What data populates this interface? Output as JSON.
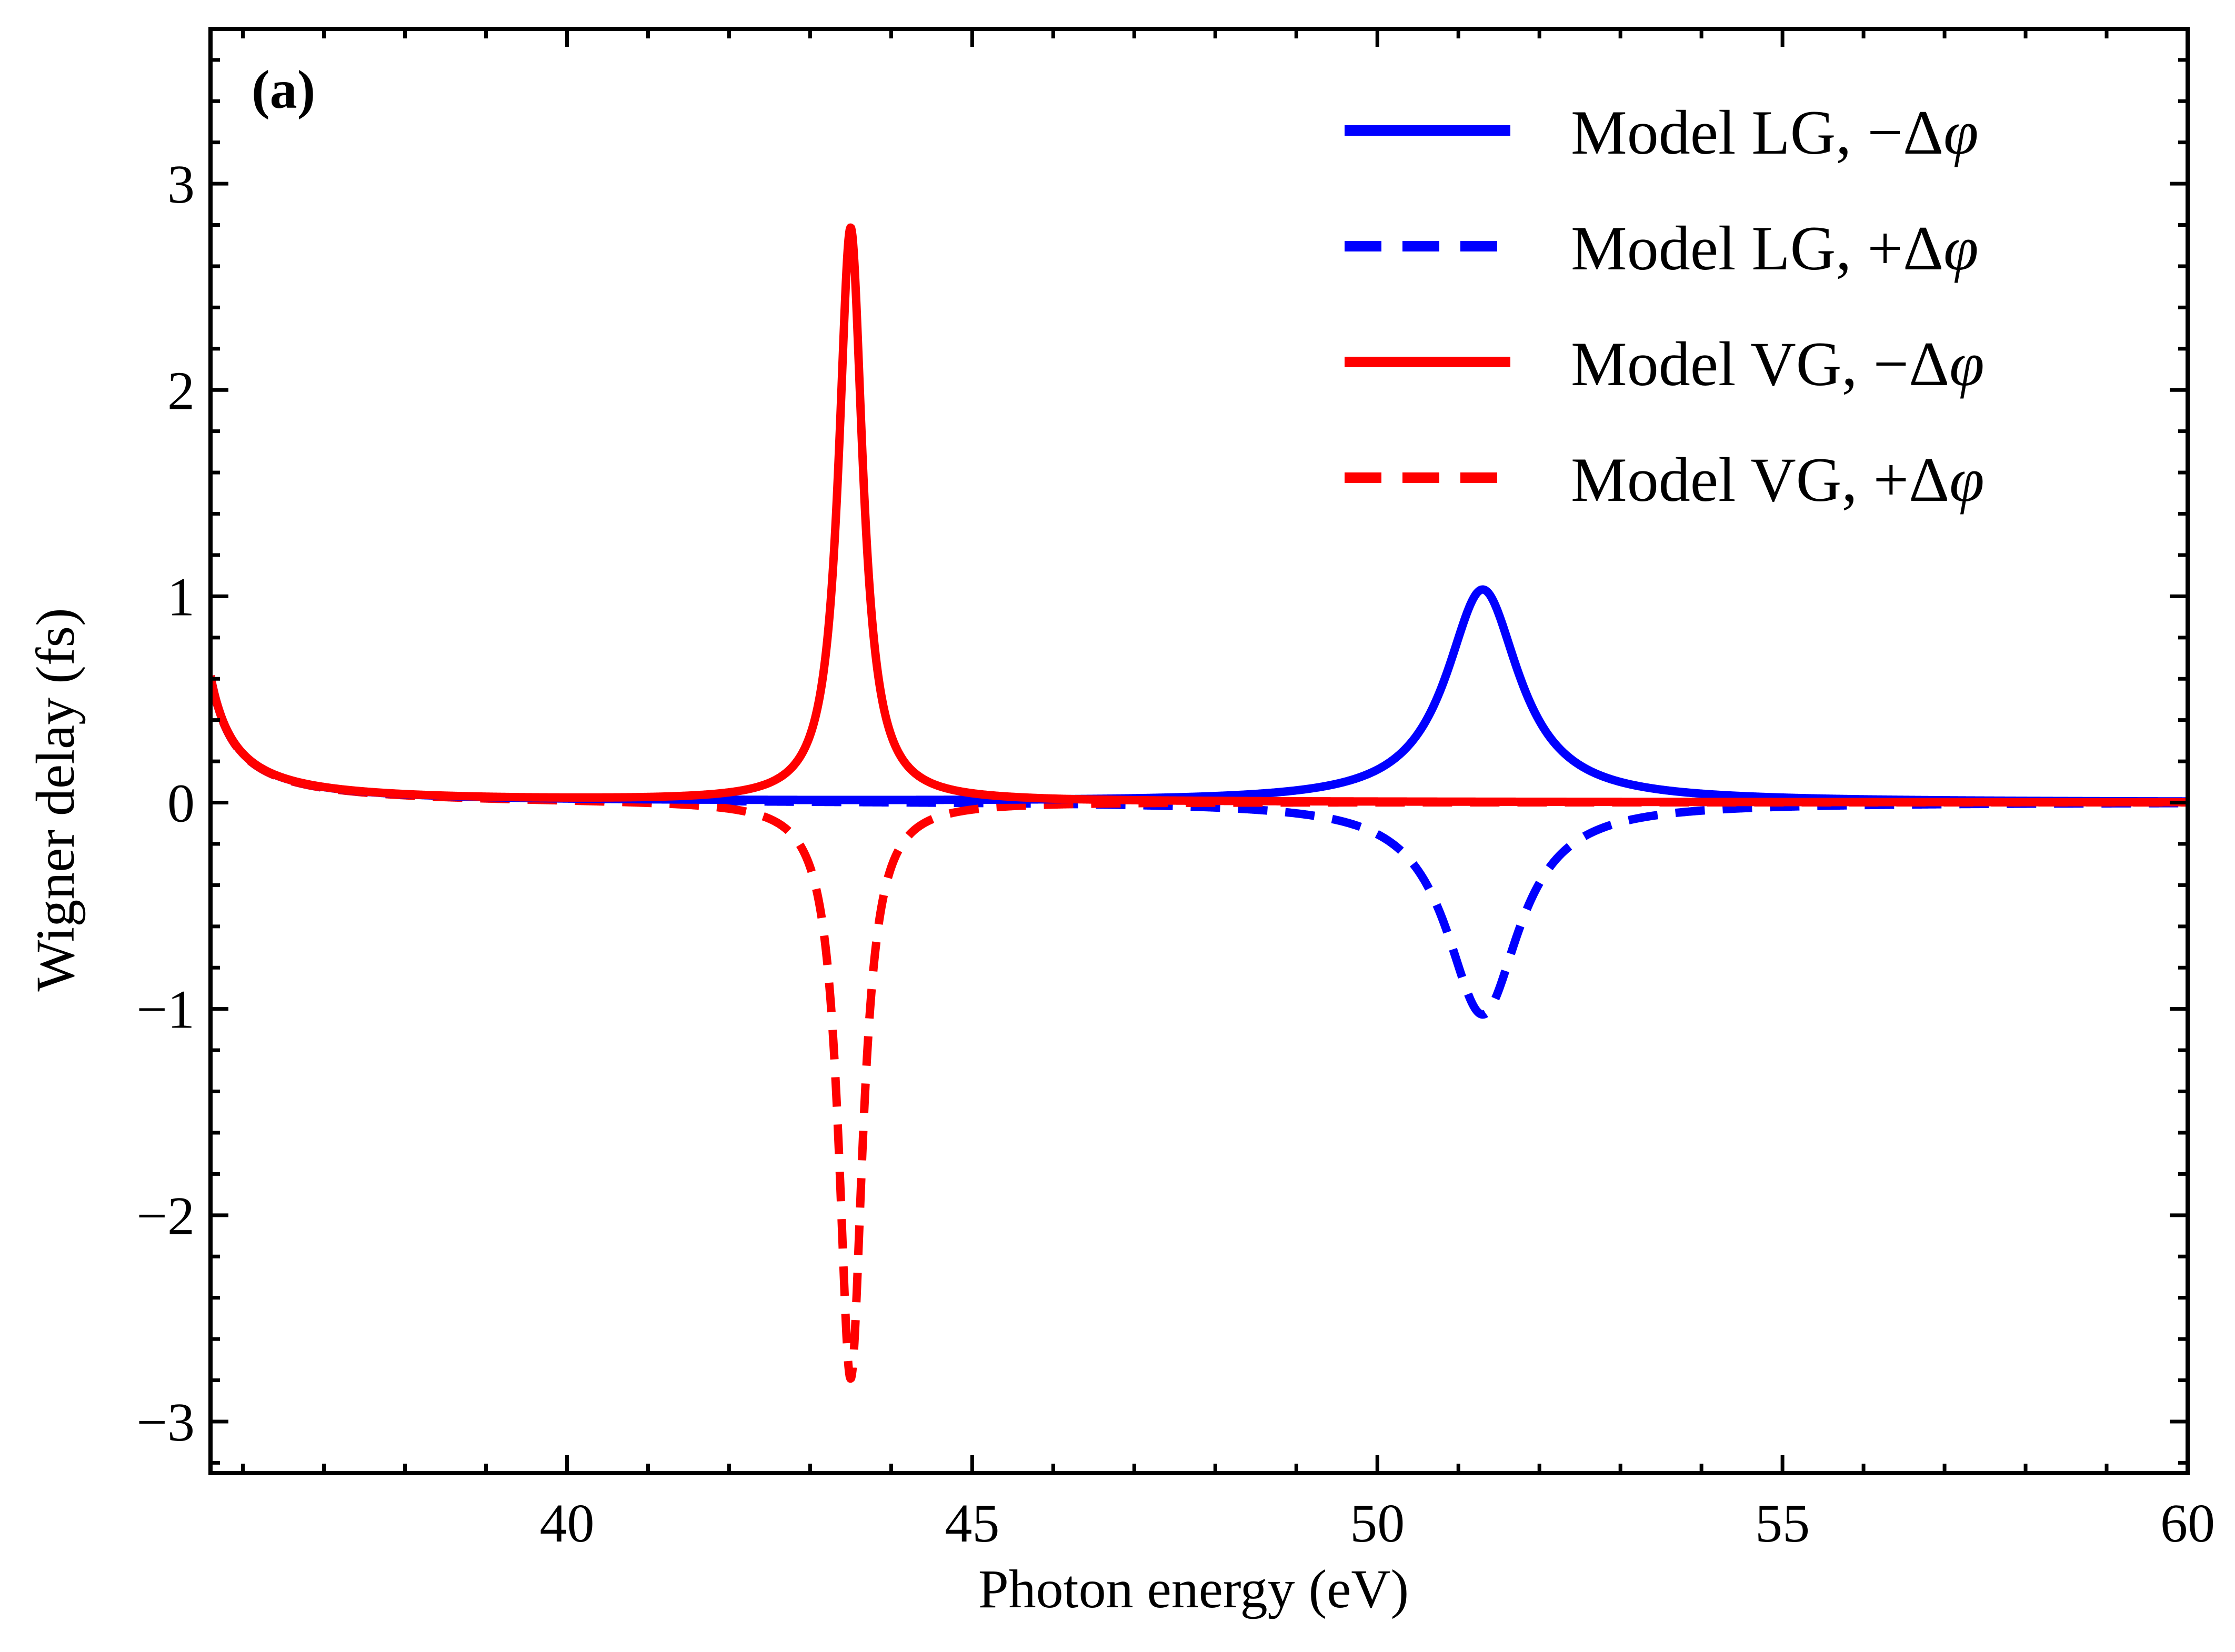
{
  "chart_data": {
    "type": "line",
    "panel_label": "(a)",
    "xlabel": "Photon energy (eV)",
    "ylabel": "Wigner delay (fs)",
    "xlim": [
      35.6,
      60
    ],
    "ylim": [
      -3.25,
      3.75
    ],
    "x_ticks": [
      40,
      45,
      50,
      55,
      60
    ],
    "x_tick_labels": [
      "40",
      "45",
      "50",
      "55",
      "60"
    ],
    "x_minor_step": 1,
    "y_ticks": [
      -3,
      -2,
      -1,
      0,
      1,
      2,
      3
    ],
    "y_tick_labels": [
      "−3",
      "−2",
      "−1",
      "0",
      "1",
      "2",
      "3"
    ],
    "y_minor_step": 0.2,
    "grid": false,
    "legend_position": "top-right",
    "colors": {
      "blue": "#0000ff",
      "red": "#ff0000"
    },
    "series": [
      {
        "name": "Model LG, −Δφ",
        "legend_text": "Model LG, −Δ",
        "legend_symbol": "φ",
        "color": "#0000ff",
        "style": "solid",
        "model": {
          "background_amplitude": 0.185,
          "background_x0": 35.15,
          "resonance_center": 51.3,
          "resonance_halfwidth": 0.55,
          "resonance_amplitude": 1.03,
          "sign": 1
        }
      },
      {
        "name": "Model LG, +Δφ",
        "legend_text": "Model LG, +Δ",
        "legend_symbol": "φ",
        "color": "#0000ff",
        "style": "dashed",
        "model": {
          "background_amplitude": 0.185,
          "background_x0": 35.15,
          "resonance_center": 51.3,
          "resonance_halfwidth": 0.55,
          "resonance_amplitude": 1.03,
          "sign": -1
        }
      },
      {
        "name": "Model VG, −Δφ",
        "legend_text": "Model VG, −Δ",
        "legend_symbol": "φ",
        "color": "#ff0000",
        "style": "solid",
        "model": {
          "background_amplitude": 0.185,
          "background_x0": 35.15,
          "resonance_center": 43.5,
          "resonance_halfwidth": 0.18,
          "resonance_amplitude": 2.78,
          "sign": 1
        }
      },
      {
        "name": "Model VG, +Δφ",
        "legend_text": "Model VG, +Δ",
        "legend_symbol": "φ",
        "color": "#ff0000",
        "style": "dashed",
        "model": {
          "background_amplitude": 0.185,
          "background_x0": 35.15,
          "resonance_center": 43.5,
          "resonance_halfwidth": 0.18,
          "resonance_amplitude": 2.8,
          "sign": -1
        }
      }
    ],
    "peaks": [
      {
        "series": "Model VG, −Δφ",
        "x": 43.5,
        "y": 2.85
      },
      {
        "series": "Model VG, +Δφ",
        "x": 43.5,
        "y": -2.8
      },
      {
        "series": "Model LG, −Δφ",
        "x": 51.3,
        "y": 1.06
      },
      {
        "series": "Model LG, +Δφ",
        "x": 51.3,
        "y": -1.04
      }
    ]
  }
}
